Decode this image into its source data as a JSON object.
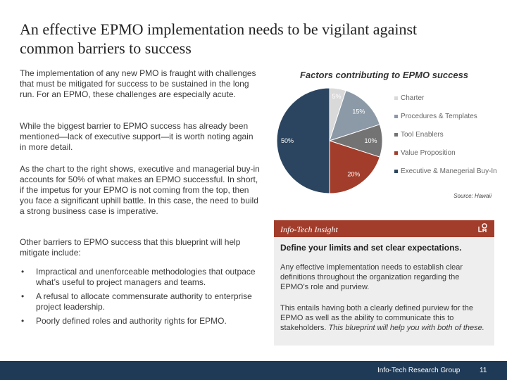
{
  "slide": {
    "title": "An effective EPMO implementation needs to be vigilant against common barriers to success"
  },
  "left": {
    "p1": "The implementation of any new PMO is fraught with challenges that must be mitigated for success to be sustained in the long run. For an EPMO, these challenges are especially acute.",
    "p2": "While the biggest barrier to EPMO success has already been mentioned—lack of executive support—it is worth noting again in more detail.",
    "p3": "As the chart to the right shows, executive and managerial buy-in accounts for 50% of what makes an EPMO successful. In short, if the impetus for your EPMO is not coming from the top, then you face a significant uphill battle. In this case, the need to build a strong business case is imperative.",
    "p4": "Other barriers to EPMO success that this blueprint will help mitigate include:",
    "bullet_symbol": "•",
    "bullets": [
      "Impractical and unenforceable methodologies that outpace what’s useful to project managers and teams.",
      "A refusal to allocate commensurate authority to enterprise project leadership.",
      "Poorly defined roles and authority rights for EPMO."
    ]
  },
  "chart_data": {
    "type": "pie",
    "title": "Factors contributing to EPMO success",
    "categories": [
      "Charter",
      "Procedures & Templates",
      "Tool Enablers",
      "Value Proposition",
      "Executive & Manegerial Buy-In"
    ],
    "values": [
      5,
      15,
      10,
      20,
      50
    ],
    "labels": [
      "5%",
      "15%",
      "10%",
      "20%",
      "50%"
    ],
    "colors": [
      "#d9d9d9",
      "#8c99a6",
      "#737373",
      "#a23d2b",
      "#2b4560"
    ],
    "legend_position": "right",
    "source": "Source: Hawaii"
  },
  "insight": {
    "title": "Info-Tech Insight",
    "icon": "info-tech-logo-icon",
    "heading": "Define your limits and set clear expectations.",
    "p1": "Any effective implementation needs to establish clear definitions throughout the organization regarding the EPMO’s role and purview.",
    "p2_normal": "This entails having both a clearly defined purview for the EPMO as well as the ability to communicate this to stakeholders. ",
    "p2_italic": "This blueprint will help you with both of these."
  },
  "footer": {
    "org": "Info-Tech Research Group",
    "page": "11"
  }
}
